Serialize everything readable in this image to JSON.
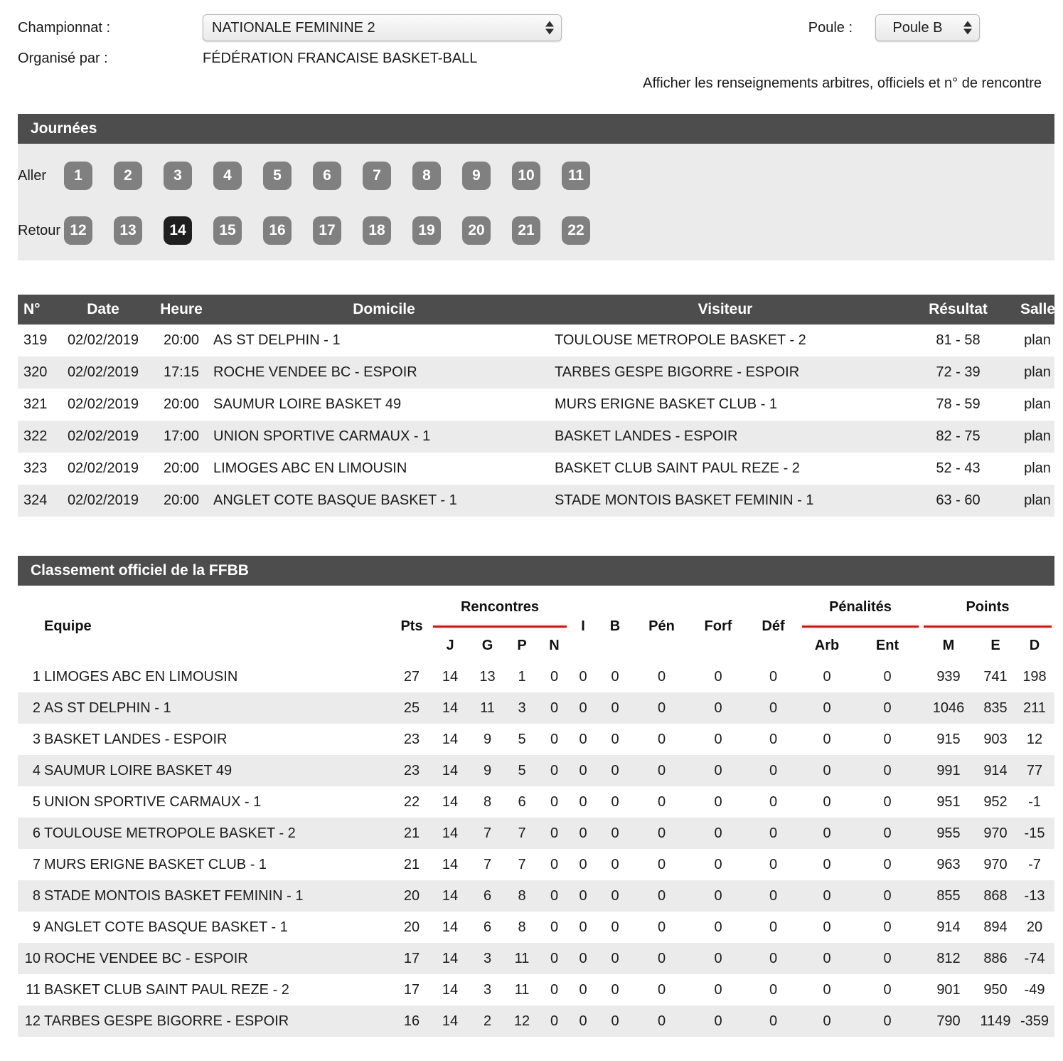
{
  "colors": {
    "bar_background": "#4d4d4d",
    "button_gray": "#808080",
    "button_selected": "#1f1f1f",
    "stripe_gray": "#ebebeb",
    "accent_red": "#ff0000"
  },
  "filters": {
    "championnat_label": "Championnat :",
    "championnat_value": "NATIONALE FEMININE 2",
    "poule_label": "Poule :",
    "poule_value": "Poule B",
    "organise_label": "Organisé par :",
    "organise_value": "FÉDÉRATION FRANCAISE BASKET-BALL",
    "details_link": "Afficher les renseignements arbitres, officiels et n° de rencontre"
  },
  "journees": {
    "title": "Journées",
    "aller_label": "Aller",
    "retour_label": "Retour",
    "aller": [
      "1",
      "2",
      "3",
      "4",
      "5",
      "6",
      "7",
      "8",
      "9",
      "10",
      "11"
    ],
    "retour": [
      "12",
      "13",
      "14",
      "15",
      "16",
      "17",
      "18",
      "19",
      "20",
      "21",
      "22"
    ],
    "selected": "14"
  },
  "results": {
    "headers": {
      "num": "N°",
      "date": "Date",
      "heure": "Heure",
      "domicile": "Domicile",
      "visiteur": "Visiteur",
      "resultat": "Résultat",
      "salle": "Salle"
    },
    "rows": [
      {
        "num": "319",
        "date": "02/02/2019",
        "heure": "20:00",
        "domicile": "AS ST DELPHIN - 1",
        "visiteur": "TOULOUSE METROPOLE BASKET - 2",
        "resultat": "81 - 58",
        "salle": "plan"
      },
      {
        "num": "320",
        "date": "02/02/2019",
        "heure": "17:15",
        "domicile": "ROCHE VENDEE BC - ESPOIR",
        "visiteur": "TARBES GESPE BIGORRE - ESPOIR",
        "resultat": "72 - 39",
        "salle": "plan"
      },
      {
        "num": "321",
        "date": "02/02/2019",
        "heure": "20:00",
        "domicile": "SAUMUR LOIRE BASKET 49",
        "visiteur": "MURS ERIGNE BASKET CLUB - 1",
        "resultat": "78 - 59",
        "salle": "plan"
      },
      {
        "num": "322",
        "date": "02/02/2019",
        "heure": "17:00",
        "domicile": "UNION SPORTIVE CARMAUX - 1",
        "visiteur": "BASKET LANDES - ESPOIR",
        "resultat": "82 - 75",
        "salle": "plan"
      },
      {
        "num": "323",
        "date": "02/02/2019",
        "heure": "20:00",
        "domicile": "LIMOGES ABC EN LIMOUSIN",
        "visiteur": "BASKET CLUB SAINT PAUL REZE - 2",
        "resultat": "52 - 43",
        "salle": "plan"
      },
      {
        "num": "324",
        "date": "02/02/2019",
        "heure": "20:00",
        "domicile": "ANGLET COTE BASQUE BASKET - 1",
        "visiteur": "STADE MONTOIS BASKET FEMININ - 1",
        "resultat": "63 - 60",
        "salle": "plan"
      }
    ]
  },
  "standings": {
    "title": "Classement officiel de la FFBB",
    "headers": {
      "equipe": "Equipe",
      "pts": "Pts",
      "rencontres": "Rencontres",
      "j": "J",
      "g": "G",
      "p": "P",
      "n": "N",
      "i": "I",
      "b": "B",
      "pen": "Pén",
      "forf": "Forf",
      "def": "Déf",
      "penalites": "Pénalités",
      "arb": "Arb",
      "ent": "Ent",
      "points": "Points",
      "m": "M",
      "e": "E",
      "d": "D"
    },
    "rows": [
      {
        "rank": "1",
        "team": "LIMOGES ABC EN LIMOUSIN",
        "pts": "27",
        "j": "14",
        "g": "13",
        "p": "1",
        "n": "0",
        "i": "0",
        "b": "0",
        "pen": "0",
        "forf": "0",
        "def": "0",
        "arb": "0",
        "ent": "0",
        "m": "939",
        "e": "741",
        "d": "198"
      },
      {
        "rank": "2",
        "team": "AS ST DELPHIN - 1",
        "pts": "25",
        "j": "14",
        "g": "11",
        "p": "3",
        "n": "0",
        "i": "0",
        "b": "0",
        "pen": "0",
        "forf": "0",
        "def": "0",
        "arb": "0",
        "ent": "0",
        "m": "1046",
        "e": "835",
        "d": "211"
      },
      {
        "rank": "3",
        "team": "BASKET LANDES - ESPOIR",
        "pts": "23",
        "j": "14",
        "g": "9",
        "p": "5",
        "n": "0",
        "i": "0",
        "b": "0",
        "pen": "0",
        "forf": "0",
        "def": "0",
        "arb": "0",
        "ent": "0",
        "m": "915",
        "e": "903",
        "d": "12"
      },
      {
        "rank": "4",
        "team": "SAUMUR LOIRE BASKET 49",
        "pts": "23",
        "j": "14",
        "g": "9",
        "p": "5",
        "n": "0",
        "i": "0",
        "b": "0",
        "pen": "0",
        "forf": "0",
        "def": "0",
        "arb": "0",
        "ent": "0",
        "m": "991",
        "e": "914",
        "d": "77"
      },
      {
        "rank": "5",
        "team": "UNION SPORTIVE CARMAUX - 1",
        "pts": "22",
        "j": "14",
        "g": "8",
        "p": "6",
        "n": "0",
        "i": "0",
        "b": "0",
        "pen": "0",
        "forf": "0",
        "def": "0",
        "arb": "0",
        "ent": "0",
        "m": "951",
        "e": "952",
        "d": "-1"
      },
      {
        "rank": "6",
        "team": "TOULOUSE METROPOLE BASKET - 2",
        "pts": "21",
        "j": "14",
        "g": "7",
        "p": "7",
        "n": "0",
        "i": "0",
        "b": "0",
        "pen": "0",
        "forf": "0",
        "def": "0",
        "arb": "0",
        "ent": "0",
        "m": "955",
        "e": "970",
        "d": "-15"
      },
      {
        "rank": "7",
        "team": "MURS ERIGNE BASKET CLUB - 1",
        "pts": "21",
        "j": "14",
        "g": "7",
        "p": "7",
        "n": "0",
        "i": "0",
        "b": "0",
        "pen": "0",
        "forf": "0",
        "def": "0",
        "arb": "0",
        "ent": "0",
        "m": "963",
        "e": "970",
        "d": "-7"
      },
      {
        "rank": "8",
        "team": "STADE MONTOIS BASKET FEMININ - 1",
        "pts": "20",
        "j": "14",
        "g": "6",
        "p": "8",
        "n": "0",
        "i": "0",
        "b": "0",
        "pen": "0",
        "forf": "0",
        "def": "0",
        "arb": "0",
        "ent": "0",
        "m": "855",
        "e": "868",
        "d": "-13"
      },
      {
        "rank": "9",
        "team": "ANGLET COTE BASQUE BASKET - 1",
        "pts": "20",
        "j": "14",
        "g": "6",
        "p": "8",
        "n": "0",
        "i": "0",
        "b": "0",
        "pen": "0",
        "forf": "0",
        "def": "0",
        "arb": "0",
        "ent": "0",
        "m": "914",
        "e": "894",
        "d": "20"
      },
      {
        "rank": "10",
        "team": "ROCHE VENDEE BC - ESPOIR",
        "pts": "17",
        "j": "14",
        "g": "3",
        "p": "11",
        "n": "0",
        "i": "0",
        "b": "0",
        "pen": "0",
        "forf": "0",
        "def": "0",
        "arb": "0",
        "ent": "0",
        "m": "812",
        "e": "886",
        "d": "-74"
      },
      {
        "rank": "11",
        "team": "BASKET CLUB SAINT PAUL REZE - 2",
        "pts": "17",
        "j": "14",
        "g": "3",
        "p": "11",
        "n": "0",
        "i": "0",
        "b": "0",
        "pen": "0",
        "forf": "0",
        "def": "0",
        "arb": "0",
        "ent": "0",
        "m": "901",
        "e": "950",
        "d": "-49"
      },
      {
        "rank": "12",
        "team": "TARBES GESPE BIGORRE - ESPOIR",
        "pts": "16",
        "j": "14",
        "g": "2",
        "p": "12",
        "n": "0",
        "i": "0",
        "b": "0",
        "pen": "0",
        "forf": "0",
        "def": "0",
        "arb": "0",
        "ent": "0",
        "m": "790",
        "e": "1149",
        "d": "-359"
      }
    ]
  }
}
